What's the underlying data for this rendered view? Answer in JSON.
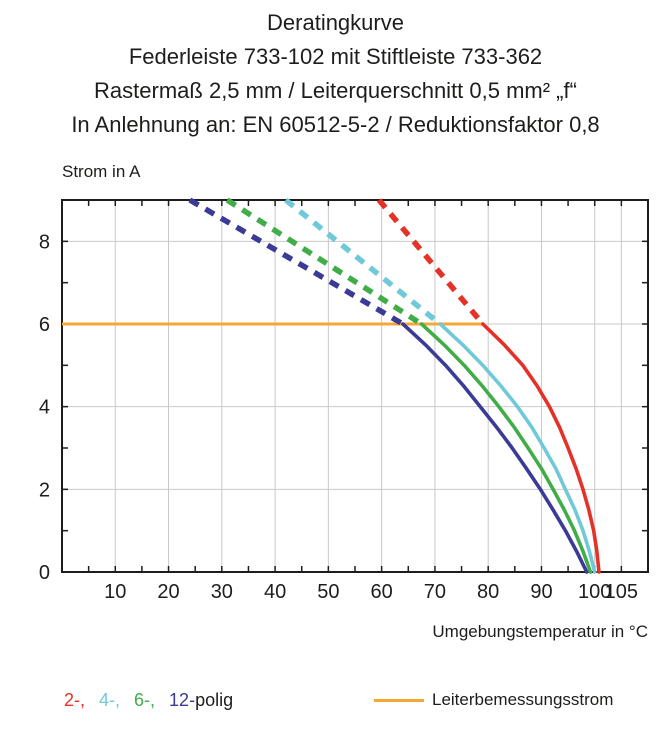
{
  "header": {
    "lines": [
      "Deratingkurve",
      "Federleiste 733-102 mit Stiftleiste 733-362",
      "Rastermaß 2,5 mm / Leiterquerschnitt 0,5 mm² „f“",
      "In Anlehnung an: EN 60512-5-2 / Reduktionsfaktor 0,8"
    ]
  },
  "chart_data": {
    "type": "line",
    "title": "Deratingkurve",
    "xlabel": "Umgebungstemperatur in °C",
    "ylabel": "Strom in A",
    "xlim": [
      0,
      110
    ],
    "ylim": [
      0,
      9
    ],
    "xticks": [
      10,
      20,
      30,
      40,
      50,
      60,
      70,
      80,
      90,
      100,
      105
    ],
    "yticks": [
      0,
      2,
      4,
      6,
      8
    ],
    "grid_x": [
      10,
      20,
      30,
      40,
      50,
      60,
      70,
      80,
      90,
      100,
      105
    ],
    "grid_y": [
      2,
      4,
      6,
      8
    ],
    "x_minor_step": 5,
    "y_minor_step": 1,
    "grid_on": true,
    "legend_position": "bottom",
    "reference_line": {
      "label": "Leiterbemessungsstrom",
      "y": 6,
      "x_start": 0,
      "x_end": 79,
      "color": "#f5a733"
    },
    "series": [
      {
        "name": "12-polig",
        "color": "#3b3b97",
        "dashed": [
          [
            24,
            9
          ],
          [
            64,
            6
          ]
        ],
        "solid": [
          [
            64,
            6
          ],
          [
            68.2,
            5.5
          ],
          [
            72,
            5
          ],
          [
            75.4,
            4.5
          ],
          [
            78.5,
            4
          ],
          [
            81.6,
            3.5
          ],
          [
            84.5,
            3
          ],
          [
            87.2,
            2.5
          ],
          [
            89.8,
            2
          ],
          [
            92.2,
            1.5
          ],
          [
            94.5,
            1
          ],
          [
            96.6,
            0.5
          ],
          [
            98.5,
            0
          ]
        ]
      },
      {
        "name": "6-polig",
        "color": "#41ad49",
        "dashed": [
          [
            31,
            9
          ],
          [
            67.5,
            6
          ]
        ],
        "solid": [
          [
            67.5,
            6
          ],
          [
            71.7,
            5.5
          ],
          [
            75.5,
            5
          ],
          [
            78.9,
            4.5
          ],
          [
            82,
            4
          ],
          [
            84.9,
            3.5
          ],
          [
            87.5,
            3
          ],
          [
            90,
            2.5
          ],
          [
            92.2,
            2
          ],
          [
            94.3,
            1.5
          ],
          [
            96.2,
            1
          ],
          [
            97.8,
            0.5
          ],
          [
            99.2,
            0
          ]
        ]
      },
      {
        "name": "4-polig",
        "color": "#6fc9d8",
        "dashed": [
          [
            42,
            9
          ],
          [
            71,
            6
          ]
        ],
        "solid": [
          [
            71,
            6
          ],
          [
            75.2,
            5.5
          ],
          [
            79,
            5
          ],
          [
            82.4,
            4.5
          ],
          [
            85.5,
            4
          ],
          [
            88.2,
            3.5
          ],
          [
            90.5,
            3
          ],
          [
            92.7,
            2.5
          ],
          [
            94.5,
            2
          ],
          [
            96.3,
            1.5
          ],
          [
            97.8,
            1
          ],
          [
            99,
            0.5
          ],
          [
            100,
            0
          ]
        ]
      },
      {
        "name": "2-polig",
        "color": "#e53228",
        "dashed": [
          [
            59.5,
            9
          ],
          [
            79,
            6
          ]
        ],
        "solid": [
          [
            79,
            6
          ],
          [
            83,
            5.5
          ],
          [
            86.5,
            5
          ],
          [
            89.2,
            4.5
          ],
          [
            91.5,
            4
          ],
          [
            93.4,
            3.5
          ],
          [
            95,
            3
          ],
          [
            96.5,
            2.5
          ],
          [
            97.8,
            2
          ],
          [
            98.9,
            1.5
          ],
          [
            99.8,
            1
          ],
          [
            100.4,
            0.5
          ],
          [
            100.8,
            0
          ]
        ]
      }
    ]
  },
  "legend": {
    "pole_items": [
      {
        "label": "2-,",
        "color": "#e53228"
      },
      {
        "label": "4-,",
        "color": "#6fc9d8"
      },
      {
        "label": "6-,",
        "color": "#41ad49"
      },
      {
        "label": "12-",
        "color": "#3b3b97"
      }
    ],
    "pole_suffix": "polig",
    "line_label": "Leiterbemessungsstrom",
    "line_color": "#f5a733"
  }
}
